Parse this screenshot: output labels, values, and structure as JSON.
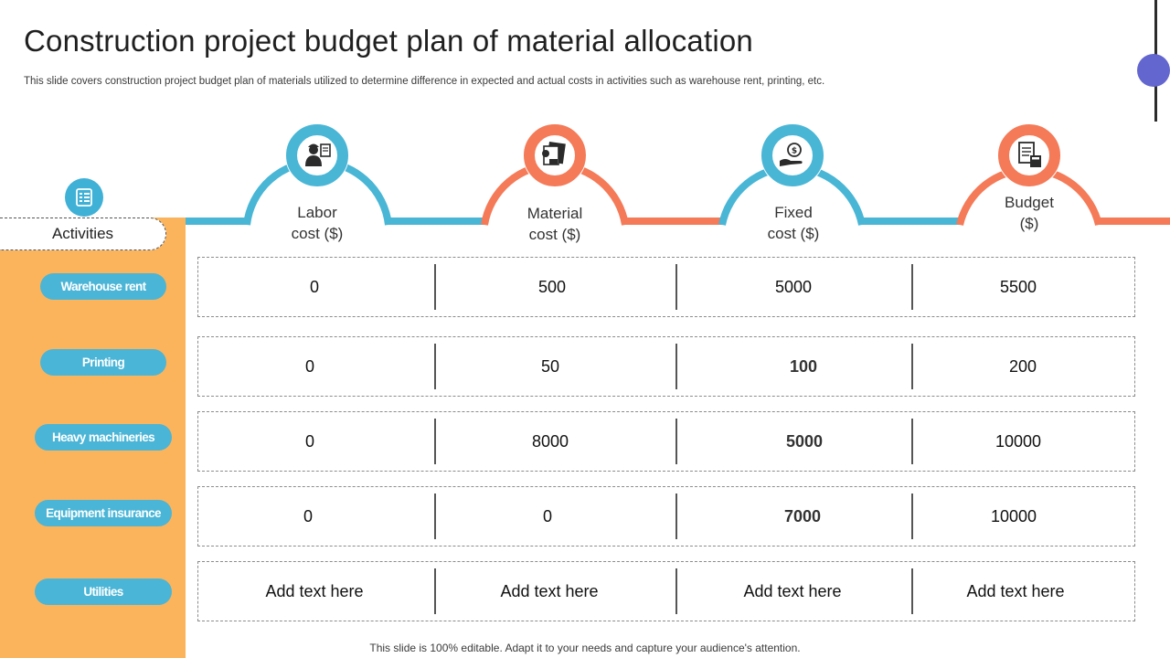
{
  "title": "Construction  project budget plan of material allocation",
  "subtitle": "This slide covers construction project budget plan of materials utilized to determine difference in expected and actual costs in activities such as warehouse rent, printing, etc.",
  "sidebar": {
    "header": "Activities",
    "icon": "checklist-icon",
    "items": [
      {
        "label": "Warehouse rent"
      },
      {
        "label": "Printing"
      },
      {
        "label": "Heavy machineries"
      },
      {
        "label": "Equipment insurance"
      },
      {
        "label": "Utilities"
      }
    ]
  },
  "columns": [
    {
      "line1": "Labor",
      "line2": "cost ($)",
      "icon": "worker-icon",
      "color": "#49b6d6"
    },
    {
      "line1": "Material",
      "line2": "cost ($)",
      "icon": "material-pile-icon",
      "color": "#f47a58"
    },
    {
      "line1": "Fixed",
      "line2": "cost ($)",
      "icon": "hand-coin-icon",
      "color": "#49b6d6"
    },
    {
      "line1": "Budget",
      "line2": "($)",
      "icon": "budget-calculator-icon",
      "color": "#f47a58"
    }
  ],
  "rows": [
    {
      "cells": [
        "0",
        "500",
        "5000",
        "5500"
      ]
    },
    {
      "cells": [
        "0",
        "50",
        "100",
        "200"
      ]
    },
    {
      "cells": [
        "0",
        "8000",
        "5000",
        "10000"
      ]
    },
    {
      "cells": [
        "0",
        "0",
        "7000",
        "10000"
      ]
    },
    {
      "cells": [
        "Add text here",
        "Add text here",
        "Add text here",
        "Add text here"
      ]
    }
  ],
  "footer": "This slide is 100% editable. Adapt it to your needs and capture your audience's attention.",
  "colors": {
    "sidebar": "#fbb45c",
    "pill": "#4ab5d6",
    "blue": "#49b6d6",
    "orange": "#f47a58",
    "accent": "#6366cf"
  }
}
